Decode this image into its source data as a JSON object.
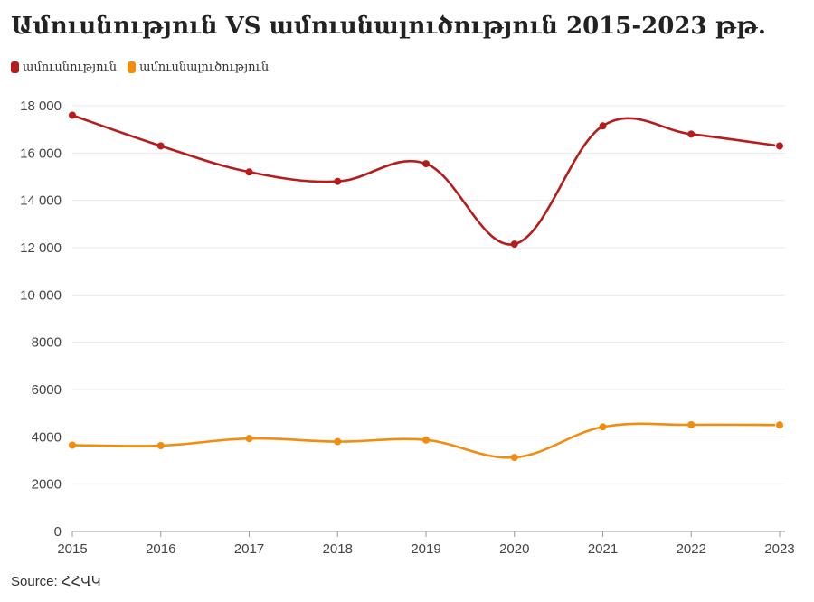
{
  "title": "Ամուսնություն VS ամուսնալուծություն 2015-2023 թթ.",
  "source": "Source: ՀՀՎԿ",
  "chart_data": {
    "type": "line",
    "x": [
      2015,
      2016,
      2017,
      2018,
      2019,
      2020,
      2021,
      2022,
      2023
    ],
    "ylim": [
      0,
      18000
    ],
    "yticks": [
      0,
      2000,
      4000,
      6000,
      8000,
      10000,
      12000,
      14000,
      16000,
      18000
    ],
    "ytick_labels": [
      "0",
      "2000",
      "4000",
      "6000",
      "8000",
      "10 000",
      "12 000",
      "14 000",
      "16 000",
      "18 000"
    ],
    "grid": true,
    "legend_position": "top-left",
    "series": [
      {
        "name": "ամուսնություն",
        "color": "#b71c1c",
        "values": [
          17600,
          16300,
          15200,
          14800,
          15550,
          12150,
          17150,
          16800,
          16300
        ]
      },
      {
        "name": "ամուսնալուծություն",
        "color": "#f38b0c",
        "values": [
          3650,
          3630,
          3930,
          3800,
          3870,
          3130,
          4420,
          4510,
          4500
        ]
      }
    ]
  }
}
